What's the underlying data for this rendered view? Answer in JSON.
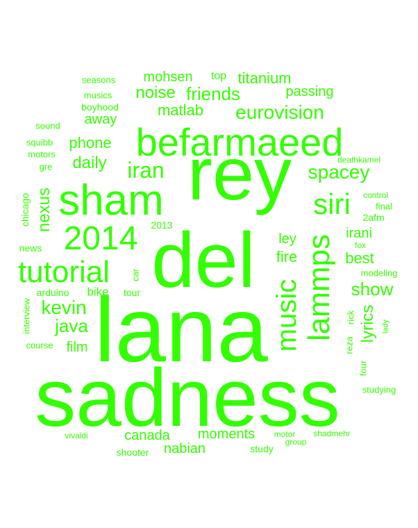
{
  "color": "#33ff00",
  "words": [
    "sadness",
    "lana",
    "del",
    "rey",
    "befarmaeed",
    "sham",
    "2014",
    "tutorial",
    "lammps",
    "music",
    "siri",
    "iran",
    "spacey",
    "eurovision",
    "kevin",
    "java",
    "nexus",
    "lyrics",
    "show",
    "friends",
    "noise",
    "matlab",
    "daily",
    "phone",
    "away",
    "titanium",
    "mohsen",
    "passing",
    "fire",
    "best",
    "irani",
    "ley",
    "canada",
    "moments",
    "nabian",
    "film",
    "bike",
    "arduino",
    "tour",
    "car",
    "2013",
    "chicago",
    "news",
    "interview",
    "course",
    "seasons",
    "musics",
    "boyhood",
    "sound",
    "squibb",
    "motors",
    "gre",
    "top",
    "deathkamel",
    "control",
    "final",
    "2afm",
    "fox",
    "modeling",
    "rick",
    "reza",
    "lady",
    "four",
    "studying",
    "vivaldi",
    "shooter",
    "study",
    "motor",
    "shadmehr",
    "group"
  ]
}
